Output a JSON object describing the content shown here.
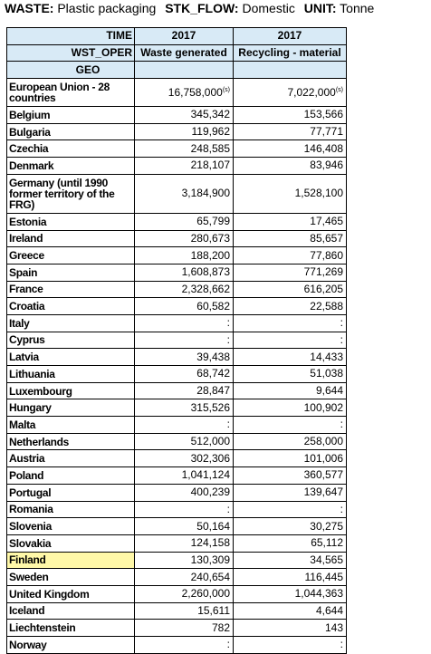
{
  "header": {
    "waste_label": "WASTE:",
    "waste_value": "Plastic packaging",
    "stk_flow_label": "STK_FLOW:",
    "stk_flow_value": "Domestic",
    "unit_label": "UNIT:",
    "unit_value": "Tonne"
  },
  "table": {
    "time_label": "TIME",
    "wst_oper_label": "WST_OPER",
    "geo_label": "GEO",
    "columns": [
      {
        "year": "2017",
        "name": "Waste generated"
      },
      {
        "year": "2017",
        "name": "Recycling - material"
      }
    ],
    "rows": [
      {
        "geo": "European Union - 28 countries",
        "waste": "16,758,000",
        "waste_flag": "(s)",
        "recycling": "7,022,000",
        "recycling_flag": "(s)"
      },
      {
        "geo": "Belgium",
        "waste": "345,342",
        "recycling": "153,566"
      },
      {
        "geo": "Bulgaria",
        "waste": "119,962",
        "recycling": "77,771"
      },
      {
        "geo": "Czechia",
        "waste": "248,585",
        "recycling": "146,408"
      },
      {
        "geo": "Denmark",
        "waste": "218,107",
        "recycling": "83,946"
      },
      {
        "geo": "Germany (until 1990 former territory of the FRG)",
        "waste": "3,184,900",
        "recycling": "1,528,100"
      },
      {
        "geo": "Estonia",
        "waste": "65,799",
        "recycling": "17,465"
      },
      {
        "geo": "Ireland",
        "waste": "280,673",
        "recycling": "85,657"
      },
      {
        "geo": "Greece",
        "waste": "188,200",
        "recycling": "77,860"
      },
      {
        "geo": "Spain",
        "waste": "1,608,873",
        "recycling": "771,269"
      },
      {
        "geo": "France",
        "waste": "2,328,662",
        "recycling": "616,205"
      },
      {
        "geo": "Croatia",
        "waste": "60,582",
        "recycling": "22,588"
      },
      {
        "geo": "Italy",
        "waste": ":",
        "recycling": ":"
      },
      {
        "geo": "Cyprus",
        "waste": ":",
        "recycling": ":"
      },
      {
        "geo": "Latvia",
        "waste": "39,438",
        "recycling": "14,433"
      },
      {
        "geo": "Lithuania",
        "waste": "68,742",
        "recycling": "51,038"
      },
      {
        "geo": "Luxembourg",
        "waste": "28,847",
        "recycling": "9,644"
      },
      {
        "geo": "Hungary",
        "waste": "315,526",
        "recycling": "100,902"
      },
      {
        "geo": "Malta",
        "waste": ":",
        "recycling": ":"
      },
      {
        "geo": "Netherlands",
        "waste": "512,000",
        "recycling": "258,000"
      },
      {
        "geo": "Austria",
        "waste": "302,306",
        "recycling": "101,006"
      },
      {
        "geo": "Poland",
        "waste": "1,041,124",
        "recycling": "360,577"
      },
      {
        "geo": "Portugal",
        "waste": "400,239",
        "recycling": "139,647"
      },
      {
        "geo": "Romania",
        "waste": ":",
        "recycling": ":"
      },
      {
        "geo": "Slovenia",
        "waste": "50,164",
        "recycling": "30,275"
      },
      {
        "geo": "Slovakia",
        "waste": "124,158",
        "recycling": "65,112"
      },
      {
        "geo": "Finland",
        "waste": "130,309",
        "recycling": "34,565",
        "highlighted": true
      },
      {
        "geo": "Sweden",
        "waste": "240,654",
        "recycling": "116,445"
      },
      {
        "geo": "United Kingdom",
        "waste": "2,260,000",
        "recycling": "1,044,363"
      },
      {
        "geo": "Iceland",
        "waste": "15,611",
        "recycling": "4,644"
      },
      {
        "geo": "Liechtenstein",
        "waste": "782",
        "recycling": "143"
      },
      {
        "geo": "Norway",
        "waste": ":",
        "recycling": ":"
      }
    ]
  },
  "colors": {
    "header_fill": "#d8eaf6",
    "highlight_fill": "#fff8a8",
    "border": "#000000"
  }
}
